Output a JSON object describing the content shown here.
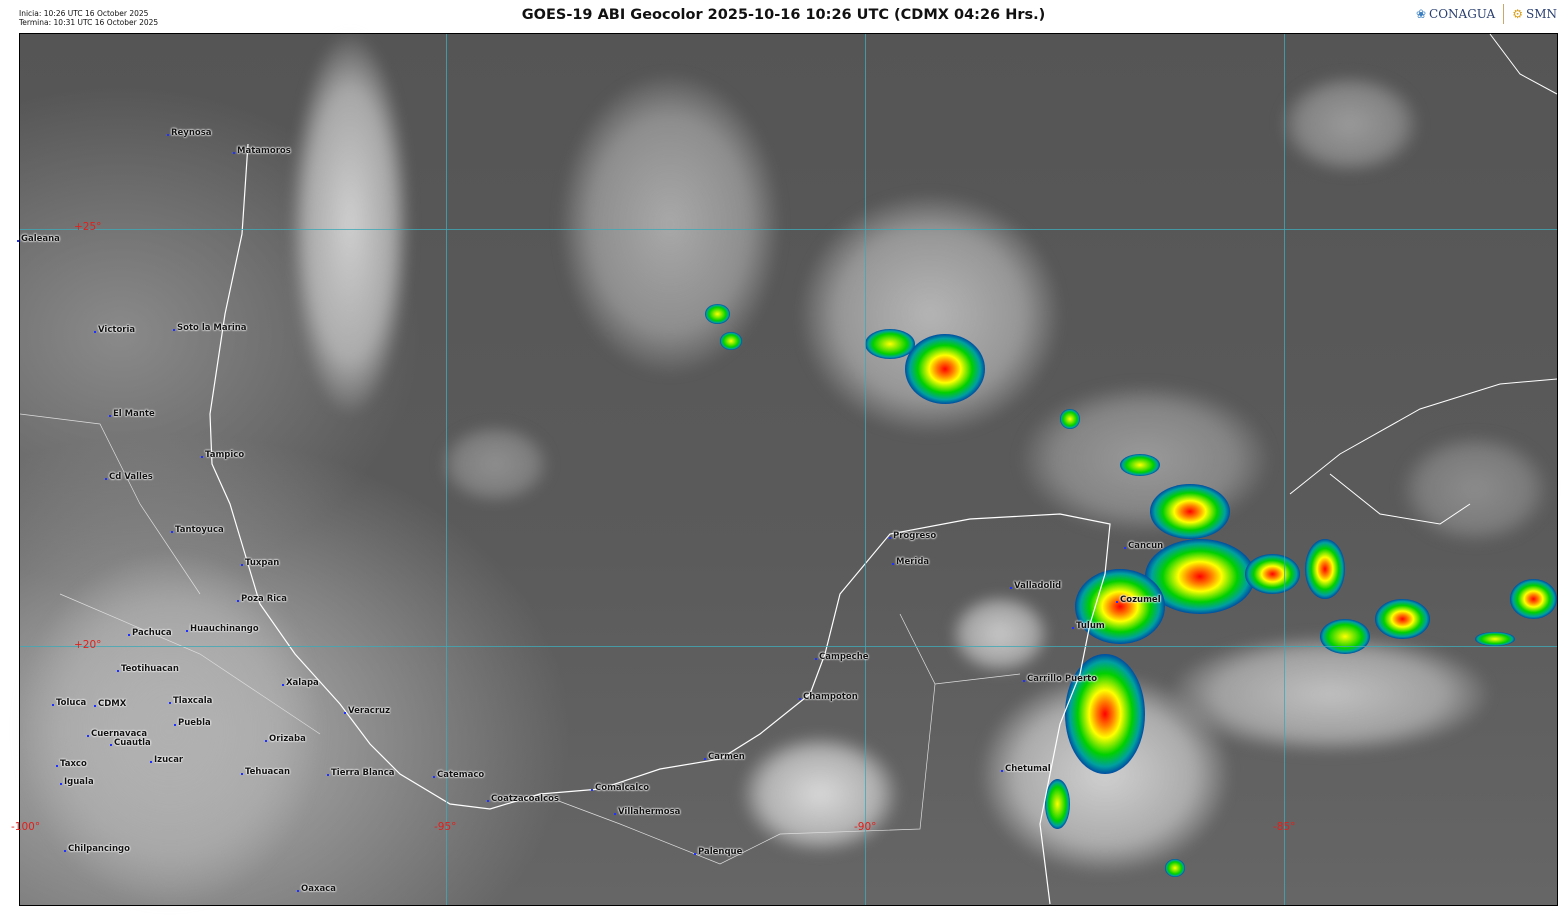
{
  "header": {
    "start_time": "Inicia: 10:26 UTC 16 October 2025",
    "end_time": "Termina: 10:31 UTC 16 October 2025",
    "title": "GOES-19 ABI Geocolor 2025-10-16 10:26 UTC (CDMX  04:26 Hrs.)",
    "logos": [
      "CONAGUA",
      "SMN"
    ]
  },
  "map": {
    "latitude_labels": [
      "+25°",
      "+20°"
    ],
    "longitude_labels": [
      "-100°",
      "-95°",
      "-90°",
      "-85°"
    ],
    "colors": {
      "gridlines": "#3fa9b8",
      "coordinate_labels": "#e0201c",
      "storm_cold": "#ff0000",
      "storm_mid": "#ffff00",
      "storm_warm": "#00d000",
      "storm_edge": "#0040a0"
    },
    "cities": [
      "Reynosa",
      "Matamoros",
      "Galeana",
      "Victoria",
      "Soto la Marina",
      "El Mante",
      "Tampico",
      "Cd Valles",
      "Tantoyuca",
      "Tuxpan",
      "Poza Rica",
      "Pachuca",
      "Huauchinango",
      "Teotihuacan",
      "Xalapa",
      "Toluca",
      "CDMX",
      "Tlaxcala",
      "Puebla",
      "Veracruz",
      "Cuernavaca",
      "Cuautla",
      "Orizaba",
      "Taxco",
      "Izucar",
      "Tehuacan",
      "Tierra Blanca",
      "Catemaco",
      "Iguala",
      "Coatzacoalcos",
      "Comalcalco",
      "Villahermosa",
      "Chilpancingo",
      "Oaxaca",
      "Palenque",
      "Carmen",
      "Champoton",
      "Campeche",
      "Progreso",
      "Merida",
      "Valladolid",
      "Cancun",
      "Cozumel",
      "Tulum",
      "Carrillo Puerto",
      "Chetumal"
    ]
  }
}
